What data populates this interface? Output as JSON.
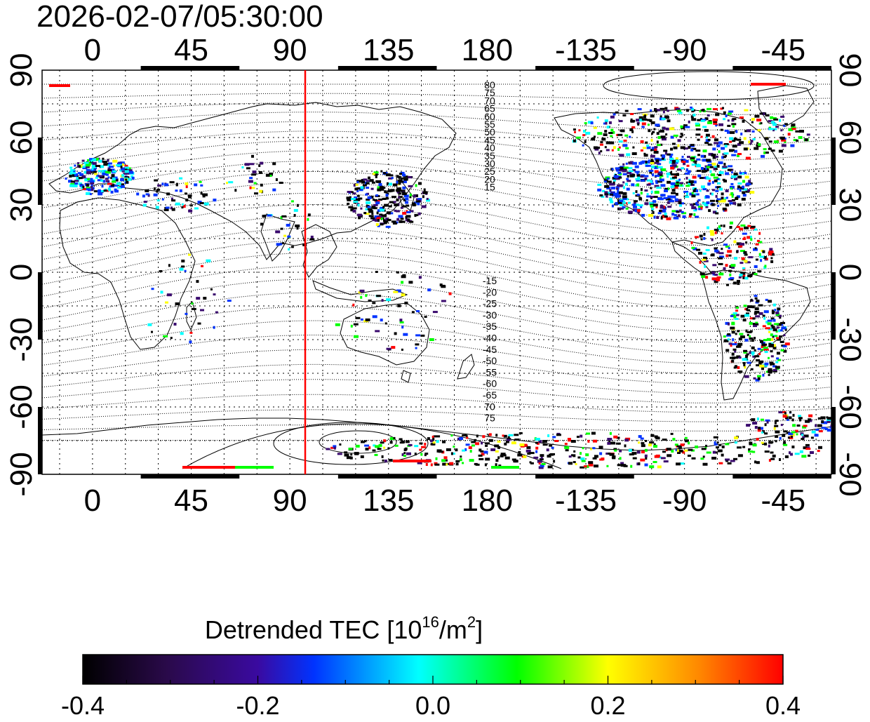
{
  "timestamp": "2026-02-07/05:30:00",
  "map": {
    "top_lon_ticks": [
      "0",
      "45",
      "90",
      "135",
      "180",
      "-135",
      "-90",
      "-45"
    ],
    "bottom_lon_ticks": [
      "0",
      "45",
      "90",
      "135",
      "180",
      "-135",
      "-90",
      "-45"
    ],
    "left_lat_ticks": [
      "90",
      "60",
      "30",
      "0",
      "-30",
      "-60",
      "-90"
    ],
    "right_lat_ticks": [
      "90",
      "60",
      "30",
      "0",
      "-30",
      "-60",
      "-90"
    ],
    "lon_range": [
      -23,
      337
    ],
    "lat_range": [
      -90,
      90
    ],
    "grid": "dotted",
    "marker_longitude": 97,
    "marker_color": "#ff0000",
    "contour_labels_north": [
      "80",
      "75",
      "70",
      "65",
      "60",
      "55",
      "50",
      "45",
      "40",
      "35",
      "30",
      "25",
      "20",
      "15"
    ],
    "contour_labels_south": [
      "-15",
      "-20",
      "-25",
      "-30",
      "-35",
      "-40",
      "-45",
      "-50",
      "-55",
      "-60",
      "-65",
      "70",
      "75"
    ]
  },
  "colorbar": {
    "title_prefix": "Detrended TEC  [10",
    "title_sup1": "16",
    "title_mid": "/m",
    "title_sup2": "2",
    "title_suffix": "]",
    "ticks": [
      "-0.4",
      "-0.2",
      "0.0",
      "0.2",
      "0.4"
    ],
    "range": [
      -0.4,
      0.4
    ],
    "colors": [
      "#000000",
      "#3a0a6e",
      "#0033ff",
      "#00ffff",
      "#00ff00",
      "#ffff00",
      "#ff0000"
    ]
  }
}
